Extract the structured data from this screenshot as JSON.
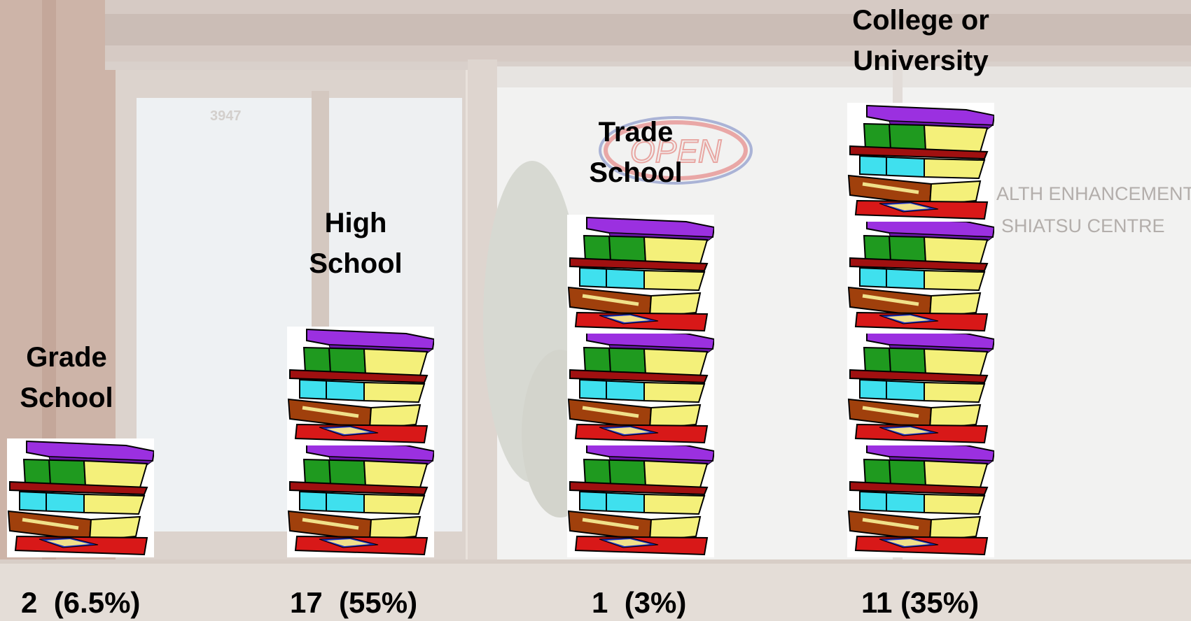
{
  "chart_data": {
    "type": "bar",
    "style": "pictograph",
    "categories": [
      "Grade School",
      "High School",
      "Trade School",
      "College or University"
    ],
    "category_labels": [
      "Grade\nSchool",
      "High\nSchool",
      "Trade\nSchool",
      "College or\nUniversity"
    ],
    "icon_counts": [
      1,
      2,
      3,
      4
    ],
    "values": [
      2,
      17,
      1,
      11
    ],
    "percent_labels": [
      "(6.5%)",
      "(55%)",
      "(3%)",
      "(35%)"
    ],
    "value_labels": [
      "2  (6.5%)",
      "17  (55%)",
      "1  (3%)",
      "11 (35%)"
    ],
    "icon": "book-stack-icon",
    "colors": {
      "book_purple": "#9b30e0",
      "book_green": "#1f9a1f",
      "book_red": "#a01010",
      "book_cyan": "#3fe0ee",
      "book_brown": "#a0400c",
      "book_yellow_pages": "#f4f07a"
    }
  },
  "background": {
    "sign_line_1": "ALTH ENHANCEMENT",
    "sign_line_2": "SHIATSU CENTRE",
    "neon_sign": "OPEN",
    "door_number": "3947"
  }
}
